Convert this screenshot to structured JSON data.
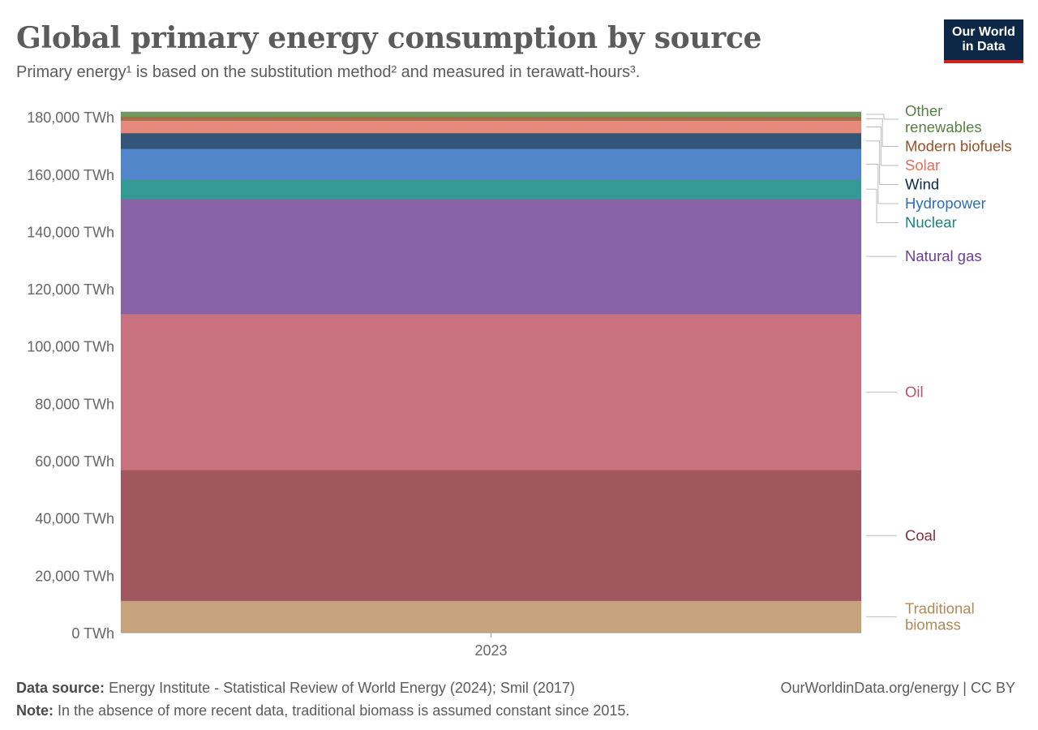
{
  "header": {
    "title": "Global primary energy consumption by source",
    "subtitle": "Primary energy¹ is based on the substitution method² and measured in terawatt-hours³.",
    "logo_line1": "Our World",
    "logo_line2": "in Data"
  },
  "footer": {
    "source_label": "Data source:",
    "source_text": "Energy Institute - Statistical Review of World Energy (2024); Smil (2017)",
    "note_label": "Note:",
    "note_text": "In the absence of more recent data, traditional biomass is assumed constant since 2015.",
    "url": "OurWorldinData.org/energy | CC BY"
  },
  "chart_data": {
    "type": "bar",
    "stacked": true,
    "categories": [
      "2023"
    ],
    "ylim": [
      0,
      183000
    ],
    "yticks": [
      0,
      20000,
      40000,
      60000,
      80000,
      100000,
      120000,
      140000,
      160000,
      180000
    ],
    "ytick_labels": [
      "0 TWh",
      "20,000 TWh",
      "40,000 TWh",
      "60,000 TWh",
      "80,000 TWh",
      "100,000 TWh",
      "120,000 TWh",
      "140,000 TWh",
      "160,000 TWh",
      "180,000 TWh"
    ],
    "grid": true,
    "series": [
      {
        "name": "Traditional biomass",
        "label_lines": [
          "Traditional",
          "biomass"
        ],
        "values": [
          11111
        ],
        "color": "#c8a47e",
        "label_color": "#b08a55"
      },
      {
        "name": "Coal",
        "label_lines": [
          "Coal"
        ],
        "values": [
          45565
        ],
        "color": "#a0585e",
        "label_color": "#883039"
      },
      {
        "name": "Oil",
        "label_lines": [
          "Oil"
        ],
        "values": [
          54564
        ],
        "color": "#ca717f",
        "label_color": "#c15065"
      },
      {
        "name": "Natural gas",
        "label_lines": [
          "Natural gas"
        ],
        "values": [
          40102
        ],
        "color": "#8963a8",
        "label_color": "#6d3e91"
      },
      {
        "name": "Nuclear",
        "label_lines": [
          "Nuclear"
        ],
        "values": [
          6824
        ],
        "color": "#359a96",
        "label_color": "#18847e"
      },
      {
        "name": "Hydropower",
        "label_lines": [
          "Hydropower"
        ],
        "values": [
          10651
        ],
        "color": "#5286cb",
        "label_color": "#2c6fb5"
      },
      {
        "name": "Wind",
        "label_lines": [
          "Wind"
        ],
        "values": [
          5488
        ],
        "color": "#34557a",
        "label_color": "#0c2846"
      },
      {
        "name": "Solar",
        "label_lines": [
          "Solar"
        ],
        "values": [
          4399
        ],
        "color": "#e58a7c",
        "label_color": "#e56e5a"
      },
      {
        "name": "Modern biofuels",
        "label_lines": [
          "Modern biofuels"
        ],
        "values": [
          1286
        ],
        "color": "#a86b45",
        "label_color": "#9a5129"
      },
      {
        "name": "Other renewables",
        "label_lines": [
          "Other",
          "renewables"
        ],
        "values": [
          1791
        ],
        "color": "#6f9a5e",
        "label_color": "#578145"
      }
    ]
  }
}
